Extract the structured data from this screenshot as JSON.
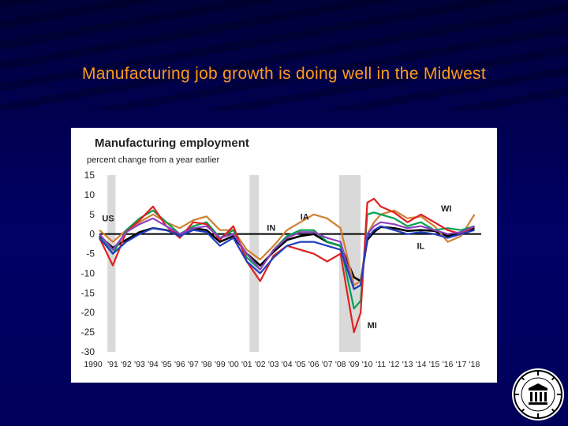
{
  "slide": {
    "title": "Manufacturing job growth is doing well in the Midwest"
  },
  "colors": {
    "background": "#000060",
    "title_text": "#ff9a1a",
    "recession": "#d9d9d9",
    "US": "#000000",
    "IA": "#d08030",
    "IN": "#00a050",
    "MI": "#e02020",
    "WI": "#9040c0",
    "IL": "#1f3fbf"
  },
  "chart_data": {
    "type": "line",
    "title": "Manufacturing employment",
    "subtitle": "percent change from a year earlier",
    "xlabel": "",
    "ylabel": "",
    "ylim": [
      -30,
      15
    ],
    "yticks": [
      15,
      10,
      5,
      0,
      -5,
      -10,
      -15,
      -20,
      -25,
      -30
    ],
    "xlim": [
      1990.0,
      2018.5
    ],
    "xtick_labels": [
      "1990",
      "'91",
      "'92",
      "'93",
      "'94",
      "'95",
      "'96",
      "'97",
      "'98",
      "'99",
      "'00",
      "'01",
      "'02",
      "'03",
      "'04",
      "'05",
      "'06",
      "'07",
      "'08",
      "'09",
      "'10",
      "'11",
      "'12",
      "'13",
      "'14",
      "'15",
      "'16",
      "'17",
      "'18"
    ],
    "grid": false,
    "zero_line": true,
    "recessions": [
      [
        1990.6,
        1991.2
      ],
      [
        2001.2,
        2001.9
      ],
      [
        2007.9,
        2009.5
      ]
    ],
    "annotations": [
      {
        "text": "US",
        "x": 1990.2,
        "y": 3.2
      },
      {
        "text": "IN",
        "x": 2002.5,
        "y": 0.8
      },
      {
        "text": "IA",
        "x": 2005.0,
        "y": 3.6
      },
      {
        "text": "WI",
        "x": 2015.5,
        "y": 5.8
      },
      {
        "text": "IL",
        "x": 2013.7,
        "y": -3.8
      },
      {
        "text": "MI",
        "x": 2010.0,
        "y": -24.0
      }
    ],
    "x": [
      1990.0,
      1991.0,
      1992.0,
      1993.0,
      1994.0,
      1995.0,
      1996.0,
      1997.0,
      1998.0,
      1999.0,
      2000.0,
      2001.0,
      2002.0,
      2003.0,
      2004.0,
      2005.0,
      2006.0,
      2007.0,
      2008.0,
      2009.0,
      2009.5,
      2010.0,
      2010.5,
      2011.0,
      2012.0,
      2013.0,
      2014.0,
      2015.0,
      2016.0,
      2017.0,
      2018.0
    ],
    "series": [
      {
        "name": "US",
        "values": [
          -0.5,
          -3.5,
          -1.5,
          0.5,
          1.5,
          1.0,
          0.0,
          1.5,
          1.0,
          -2.0,
          -0.5,
          -5.0,
          -8.0,
          -4.5,
          -1.5,
          -0.5,
          0.0,
          -2.0,
          -3.0,
          -11.0,
          -12.0,
          -1.5,
          0.5,
          1.8,
          1.5,
          0.8,
          1.0,
          0.8,
          -0.5,
          0.5,
          1.5
        ]
      },
      {
        "name": "IA",
        "values": [
          1.0,
          -2.0,
          1.0,
          3.0,
          5.0,
          3.0,
          1.5,
          3.5,
          4.5,
          1.0,
          1.0,
          -4.0,
          -6.5,
          -3.0,
          1.0,
          3.0,
          5.0,
          4.0,
          1.5,
          -13.0,
          -12.0,
          0.0,
          3.0,
          5.0,
          6.0,
          4.0,
          4.5,
          2.0,
          -2.0,
          -0.5,
          5.0
        ]
      },
      {
        "name": "IN",
        "values": [
          0.0,
          -5.0,
          1.0,
          4.0,
          6.0,
          3.0,
          0.0,
          2.0,
          3.0,
          -1.0,
          1.0,
          -6.0,
          -9.0,
          -4.0,
          -0.5,
          1.0,
          1.0,
          -2.0,
          -3.0,
          -19.0,
          -17.0,
          5.0,
          5.5,
          5.0,
          4.0,
          2.0,
          3.0,
          1.0,
          1.5,
          1.0,
          2.0
        ]
      },
      {
        "name": "MI",
        "values": [
          -1.0,
          -8.0,
          0.5,
          3.5,
          7.0,
          2.0,
          -1.0,
          3.0,
          2.5,
          -1.5,
          2.0,
          -7.0,
          -12.0,
          -5.5,
          -3.0,
          -4.0,
          -5.0,
          -7.0,
          -5.0,
          -25.0,
          -20.0,
          8.0,
          9.0,
          7.0,
          5.5,
          3.0,
          5.0,
          3.0,
          1.0,
          0.0,
          2.0
        ]
      },
      {
        "name": "WI",
        "values": [
          0.0,
          -4.0,
          0.5,
          2.5,
          4.0,
          2.0,
          0.0,
          1.5,
          2.0,
          -1.0,
          0.0,
          -5.0,
          -9.0,
          -4.0,
          -1.0,
          0.5,
          0.5,
          -1.0,
          -2.0,
          -14.0,
          -13.0,
          0.0,
          2.0,
          3.0,
          2.5,
          1.5,
          2.0,
          1.0,
          0.0,
          0.5,
          2.0
        ]
      },
      {
        "name": "IL",
        "values": [
          -1.0,
          -5.0,
          -2.0,
          0.0,
          1.5,
          1.0,
          -0.5,
          1.0,
          0.5,
          -3.0,
          -1.0,
          -7.0,
          -10.0,
          -6.0,
          -3.0,
          -2.0,
          -2.0,
          -3.0,
          -4.0,
          -14.0,
          -13.0,
          -1.0,
          1.0,
          2.0,
          1.0,
          0.0,
          0.5,
          0.0,
          -1.0,
          0.0,
          1.0
        ]
      }
    ]
  }
}
